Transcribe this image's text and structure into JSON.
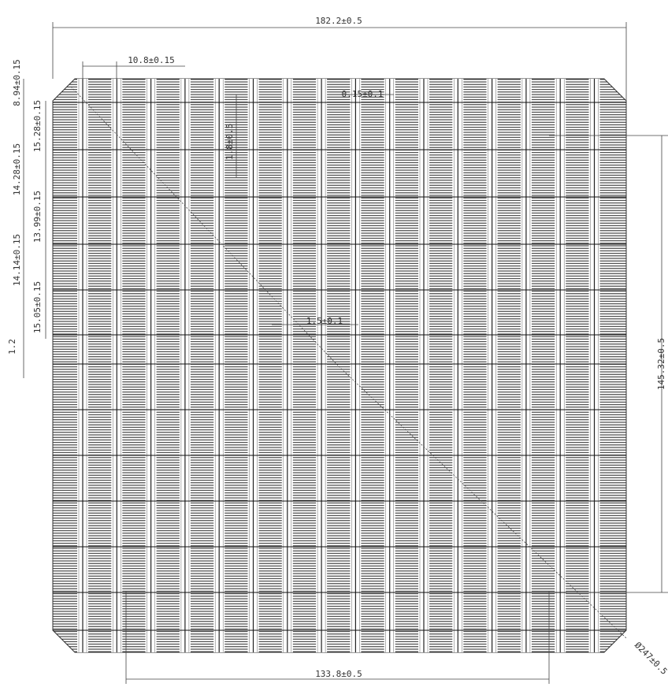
{
  "dimensions": {
    "overall_width": "182.2±0.5",
    "busbar_pitch": "10.8±0.15",
    "edge_offset": "8.94±0.15",
    "segment_1": "15.28±0.15",
    "segment_2": "14.28±0.15",
    "segment_3": "13.99±0.15",
    "segment_4": "14.14±0.15",
    "segment_5": "15.05±0.15",
    "gap": "1.2",
    "finger_width": "0.15±0.1",
    "pad_length": "1.8±0.5",
    "pad_width": "1.5±0.1",
    "side_height": "145.32±0.5",
    "side_width": "133.8±0.5",
    "diameter": "Ø247±0.5"
  }
}
